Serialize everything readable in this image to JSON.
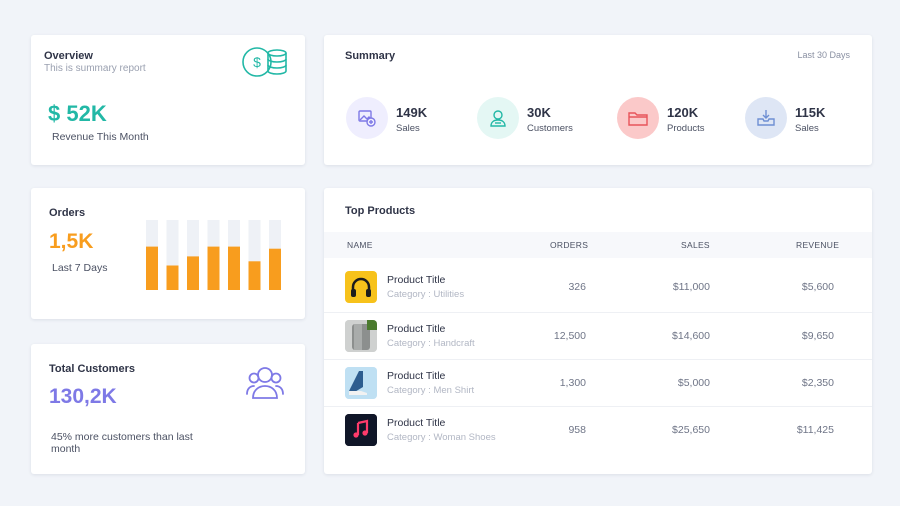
{
  "overview": {
    "title": "Overview",
    "subtitle": "This is summary report",
    "value": "$ 52K",
    "label": "Revenue This Month",
    "icon": "coins-icon",
    "accent": "#22b8a6"
  },
  "orders": {
    "title": "Orders",
    "value": "1,5K",
    "label": "Last 7 Days",
    "accent": "#f89d1e",
    "chart_data": {
      "type": "bar",
      "categories": [
        "",
        "",
        "",
        "",
        "",
        "",
        ""
      ],
      "series": [
        {
          "values": [
            0.62,
            0.35,
            0.48,
            0.62,
            0.62,
            0.41,
            0.59
          ]
        },
        {
          "values": [
            1.0,
            1.0,
            1.0,
            1.0,
            1.0,
            1.0,
            1.0
          ]
        }
      ],
      "ylim": [
        0,
        1
      ]
    }
  },
  "customers": {
    "title": "Total Customers",
    "value": "130,2K",
    "label": "45% more customers than last month",
    "icon": "users-icon",
    "accent": "#7e79e6"
  },
  "summary": {
    "title": "Summary",
    "range": "Last 30 Days",
    "stats": [
      {
        "value": "149K",
        "label": "Sales",
        "icon": "image-add-icon",
        "color": "#7e79e6",
        "bg": "#efeefe"
      },
      {
        "value": "30K",
        "label": "Customers",
        "icon": "user-icon",
        "color": "#22b8a6",
        "bg": "#e4f7f4"
      },
      {
        "value": "120K",
        "label": "Products",
        "icon": "folder-icon",
        "color": "#e8545a",
        "bg": "#fbc9c9"
      },
      {
        "value": "115K",
        "label": "Sales",
        "icon": "inbox-download-icon",
        "color": "#6f8fd3",
        "bg": "#dee6f5"
      }
    ]
  },
  "products": {
    "title": "Top Products",
    "columns": {
      "name": "NAME",
      "orders": "ORDERS",
      "sales": "SALES",
      "revenue": "REVENUE"
    },
    "rows": [
      {
        "name": "Product Title",
        "category": "Category : Utilities",
        "orders": "326",
        "sales": "$11,000",
        "revenue": "$5,600",
        "thumb": "headphones-image"
      },
      {
        "name": "Product Title",
        "category": "Category : Handcraft",
        "orders": "12,500",
        "sales": "$14,600",
        "revenue": "$9,650",
        "thumb": "speaker-image"
      },
      {
        "name": "Product Title",
        "category": "Category : Men Shirt",
        "orders": "1,300",
        "sales": "$5,000",
        "revenue": "$2,350",
        "thumb": "shoe-image"
      },
      {
        "name": "Product Title",
        "category": "Category : Woman Shoes",
        "orders": "958",
        "sales": "$25,650",
        "revenue": "$11,425",
        "thumb": "music-app-image"
      }
    ]
  }
}
